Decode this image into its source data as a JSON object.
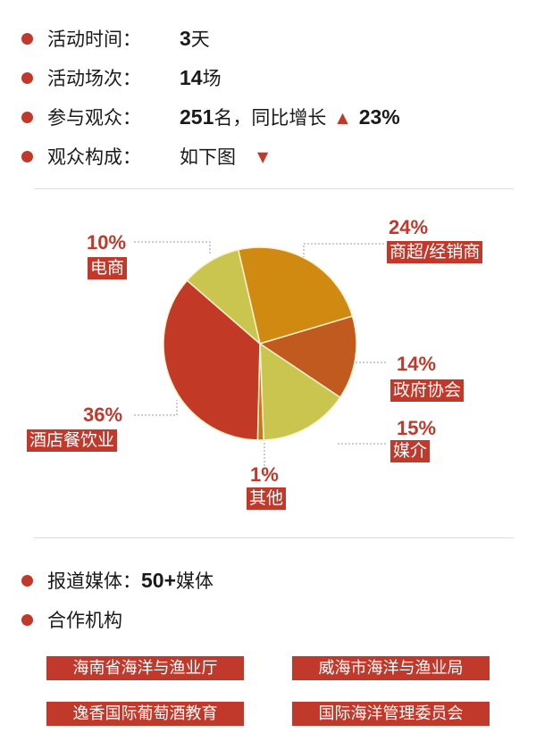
{
  "stats": [
    {
      "label": "活动时间：",
      "value_bold": "3",
      "value_rest": "天"
    },
    {
      "label": "活动场次：",
      "value_bold": "14",
      "value_rest": "场"
    },
    {
      "label": "参与观众：",
      "value_bold": "251",
      "value_rest": "名，同比增长",
      "growth": "23%",
      "growth_icon": "arrow-up-icon"
    },
    {
      "label": "观众构成：",
      "value_rest": "如下图",
      "icon": "arrow-down-icon"
    }
  ],
  "chart_data": {
    "type": "pie",
    "slices": [
      {
        "label": "商超/经销商",
        "value": 24,
        "pct": "24%",
        "color": "#d08a12"
      },
      {
        "label": "政府协会",
        "value": 14,
        "pct": "14%",
        "color": "#c05a1e"
      },
      {
        "label": "媒介",
        "value": 15,
        "pct": "15%",
        "color": "#c9c54e"
      },
      {
        "label": "其他",
        "value": 1,
        "pct": "1%",
        "color": "#c8761a"
      },
      {
        "label": "酒店餐饮业",
        "value": 36,
        "pct": "36%",
        "color": "#c23a26"
      },
      {
        "label": "电商",
        "value": 10,
        "pct": "10%",
        "color": "#c9c54e"
      }
    ]
  },
  "media": {
    "label": "报道媒体：",
    "value_bold": "50+",
    "value_rest": "媒体"
  },
  "partners": {
    "label": "合作机构",
    "items": [
      "海南省海洋与渔业厅",
      "威海市海洋与渔业局",
      "逸香国际葡萄酒教育",
      "国际海洋管理委员会"
    ]
  }
}
